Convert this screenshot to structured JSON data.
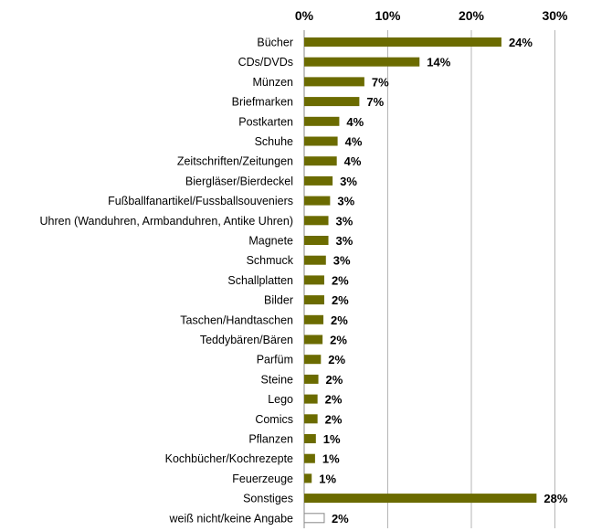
{
  "chart_data": {
    "type": "bar",
    "orientation": "horizontal",
    "title": "",
    "xlabel": "",
    "ylabel": "",
    "xlim": [
      0,
      30
    ],
    "x_ticks": [
      0,
      10,
      20,
      30
    ],
    "x_tick_labels": [
      "0%",
      "10%",
      "20%",
      "30%"
    ],
    "x_axis_position": "top",
    "grid": "vertical",
    "legend": "none",
    "colors": {
      "bar": "#6b6b00",
      "bar_unknown_fill": "#ffffff",
      "bar_unknown_stroke": "#888888",
      "grid": "#b5b5b5"
    },
    "categories": [
      "Bücher",
      "CDs/DVDs",
      "Münzen",
      "Briefmarken",
      "Postkarten",
      "Schuhe",
      "Zeitschriften/Zeitungen",
      "Biergläser/Bierdeckel",
      "Fußballfanartikel/Fussballsouveniers",
      "Uhren (Wanduhren, Armbanduhren, Antike Uhren)",
      "Magnete",
      "Schmuck",
      "Schallplatten",
      "Bilder",
      "Taschen/Handtaschen",
      "Teddybären/Bären",
      "Parfüm",
      "Steine",
      "Lego",
      "Comics",
      "Pflanzen",
      "Kochbücher/Kochrezepte",
      "Feuerzeuge",
      "Sonstiges",
      "weiß nicht/keine Angabe"
    ],
    "values": [
      23.6,
      13.8,
      7.2,
      6.6,
      4.2,
      4.0,
      3.9,
      3.4,
      3.1,
      2.9,
      2.9,
      2.6,
      2.4,
      2.4,
      2.3,
      2.2,
      2.0,
      1.7,
      1.6,
      1.6,
      1.4,
      1.3,
      0.9,
      27.8,
      2.4
    ],
    "data_labels": [
      "24%",
      "14%",
      "7%",
      "7%",
      "4%",
      "4%",
      "4%",
      "3%",
      "3%",
      "3%",
      "3%",
      "3%",
      "2%",
      "2%",
      "2%",
      "2%",
      "2%",
      "2%",
      "2%",
      "2%",
      "1%",
      "1%",
      "1%",
      "28%",
      "2%"
    ],
    "unfilled_categories": [
      "weiß nicht/keine Angabe"
    ]
  }
}
